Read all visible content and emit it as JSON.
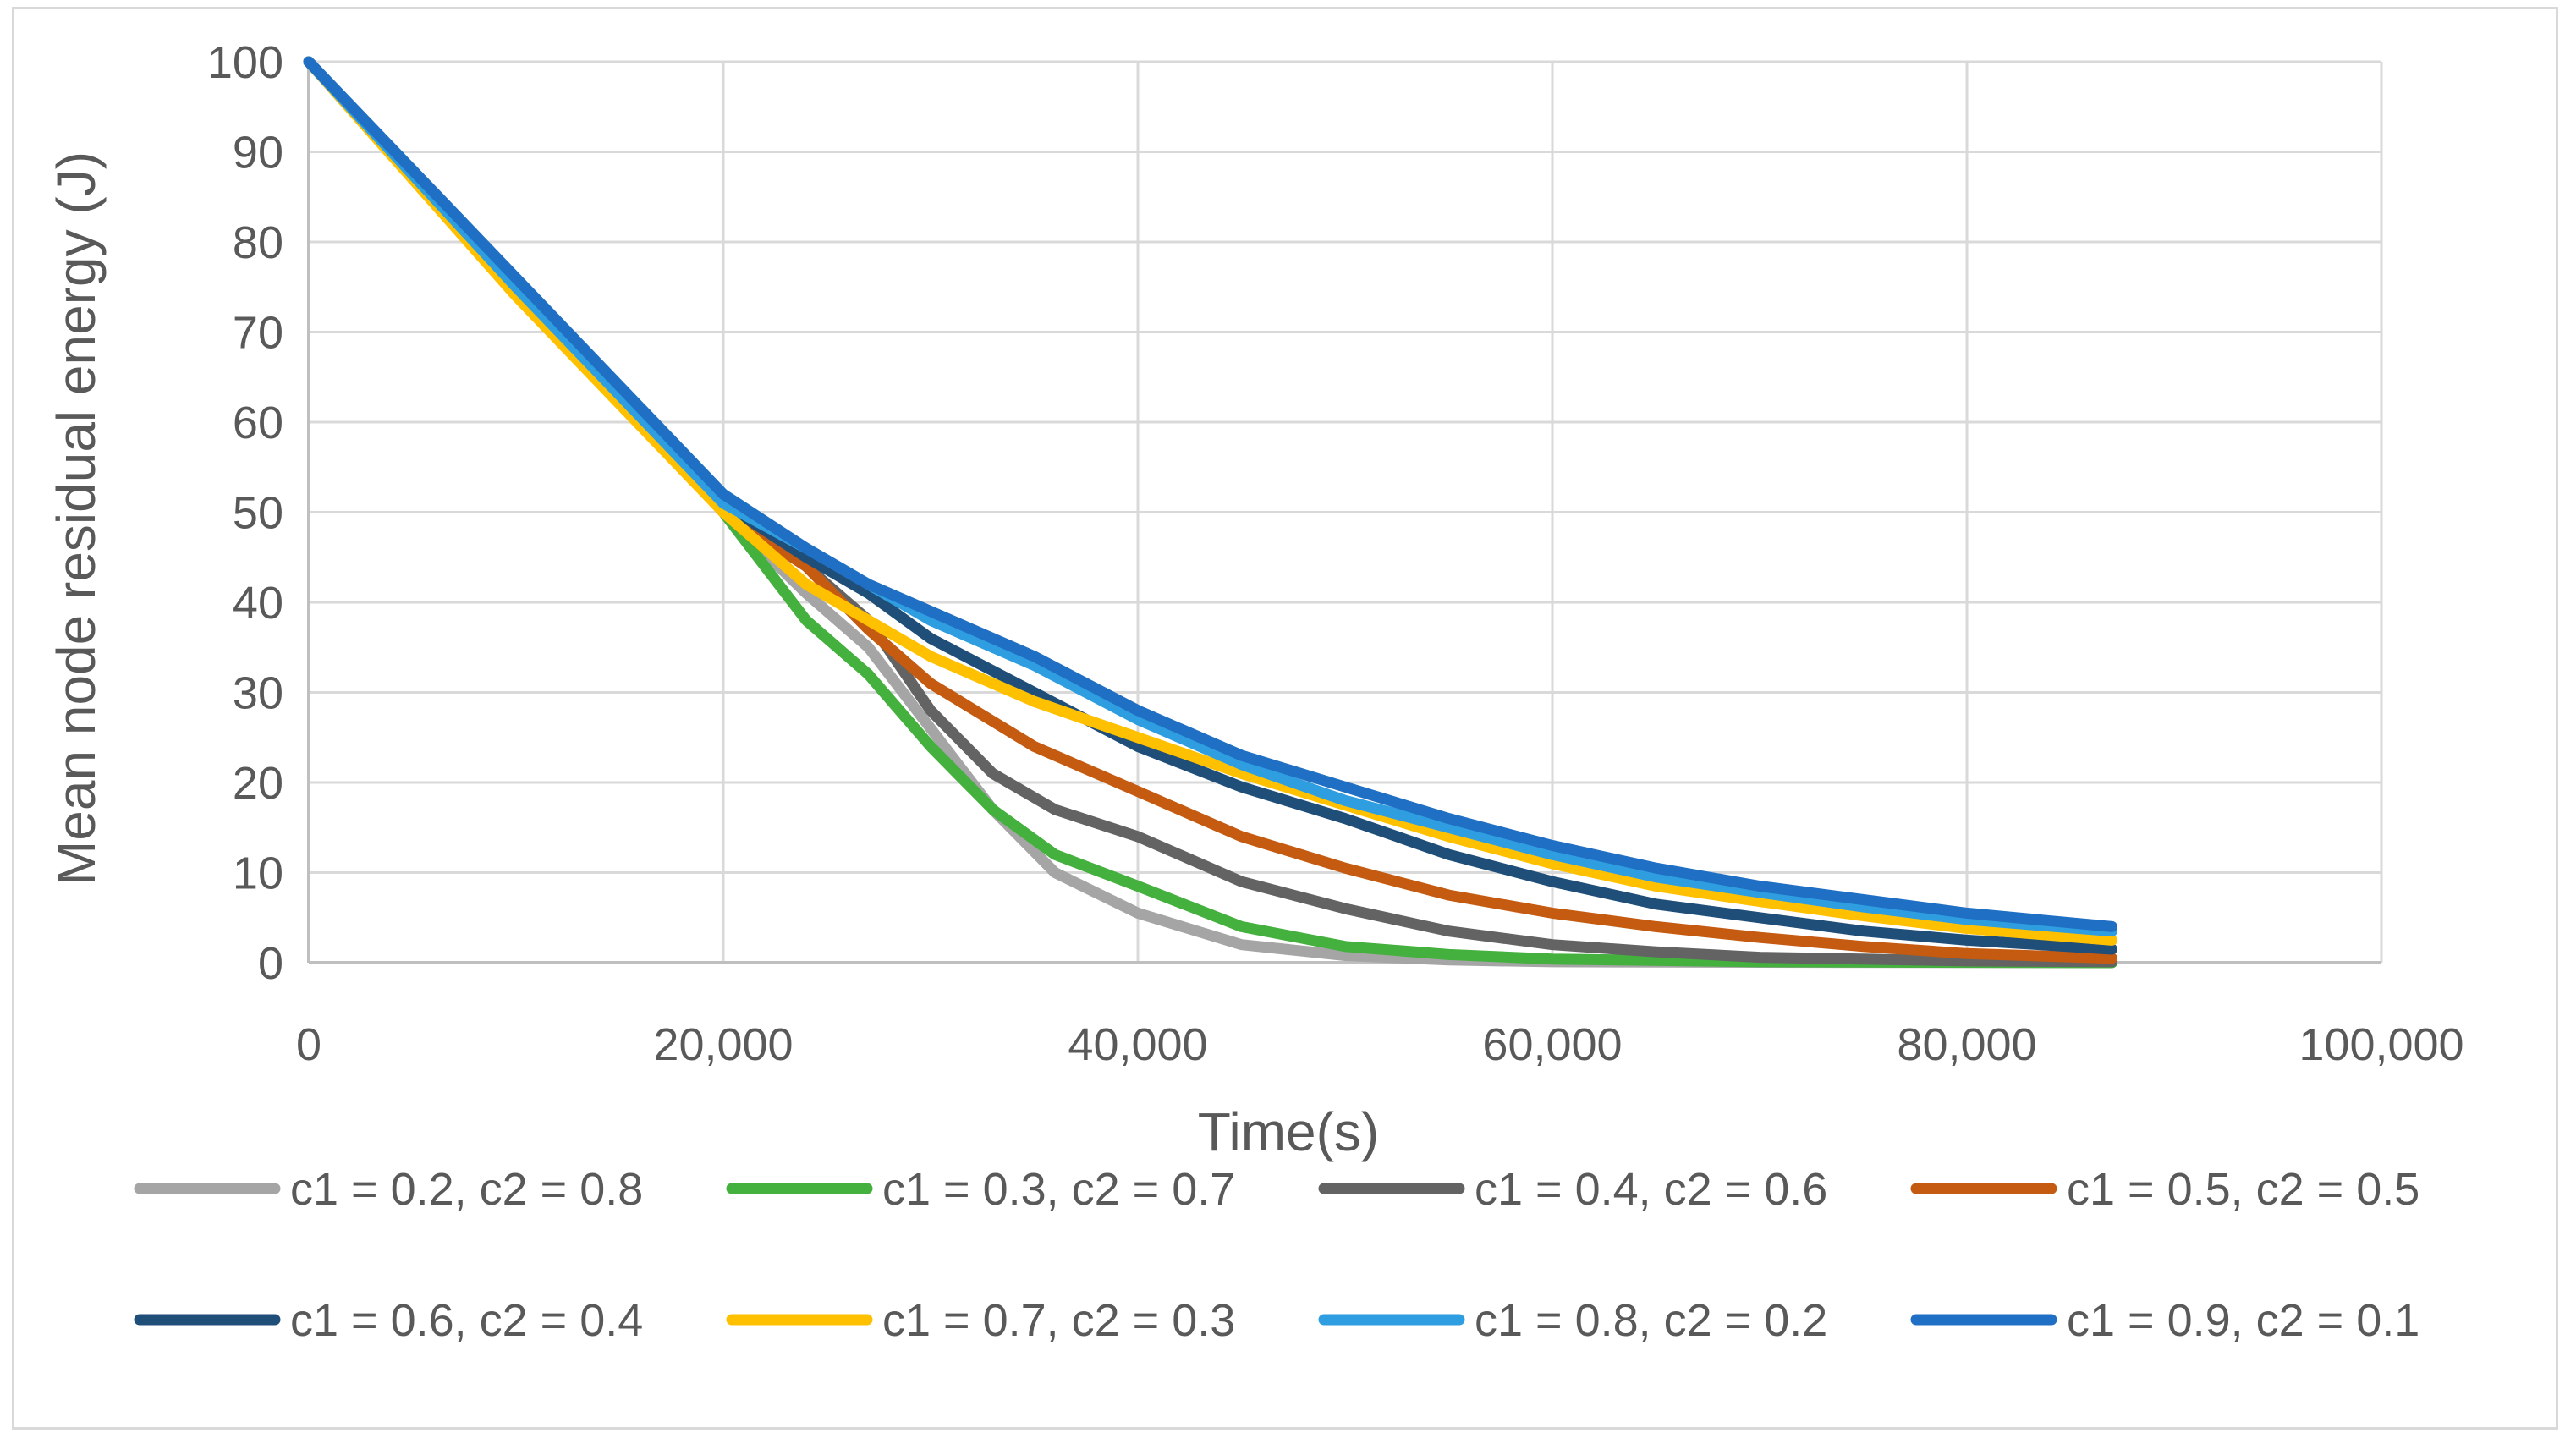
{
  "chart_data": {
    "type": "line",
    "title": "",
    "xlabel": "Time(s)",
    "ylabel": "Mean node residual energy (J)",
    "xlim": [
      0,
      100000
    ],
    "ylim": [
      0,
      100
    ],
    "xticks": [
      0,
      20000,
      40000,
      60000,
      80000,
      100000
    ],
    "xtick_labels": [
      "0",
      "20,000",
      "40,000",
      "60,000",
      "80,000",
      "100,000"
    ],
    "yticks": [
      0,
      10,
      20,
      30,
      40,
      50,
      60,
      70,
      80,
      90,
      100
    ],
    "ytick_labels": [
      "0",
      "10",
      "20",
      "30",
      "40",
      "50",
      "60",
      "70",
      "80",
      "90",
      "100"
    ],
    "grid": true,
    "legend_position": "bottom",
    "series": [
      {
        "name": "c1 = 0.2, c2 = 0.8",
        "color": "#a5a5a5",
        "x": [
          0,
          10000,
          20000,
          24000,
          27000,
          30000,
          33000,
          36000,
          40000,
          45000,
          50000,
          55000,
          60000,
          70000,
          87000
        ],
        "y": [
          100,
          75,
          50,
          41,
          35,
          26,
          17,
          10,
          5.5,
          2,
          0.8,
          0.3,
          0.1,
          0.05,
          0
        ]
      },
      {
        "name": "c1 = 0.3, c2 = 0.7",
        "color": "#44b03e",
        "x": [
          0,
          10000,
          20000,
          24000,
          27000,
          30000,
          33000,
          36000,
          40000,
          45000,
          50000,
          55000,
          60000,
          70000,
          87000
        ],
        "y": [
          100,
          75,
          50,
          38,
          32,
          24,
          17,
          12,
          8.5,
          4,
          1.8,
          0.9,
          0.4,
          0.1,
          0
        ]
      },
      {
        "name": "c1 = 0.4, c2 = 0.6",
        "color": "#636363",
        "x": [
          0,
          10000,
          20000,
          24000,
          27000,
          30000,
          33000,
          36000,
          40000,
          45000,
          50000,
          55000,
          60000,
          65000,
          70000,
          80000,
          87000
        ],
        "y": [
          100,
          75,
          50,
          44,
          38,
          28,
          21,
          17,
          14,
          9,
          6,
          3.5,
          2,
          1.2,
          0.6,
          0.2,
          0.1
        ]
      },
      {
        "name": "c1 = 0.5, c2 = 0.5",
        "color": "#c55a11",
        "x": [
          0,
          10000,
          20000,
          24000,
          27000,
          30000,
          35000,
          40000,
          45000,
          50000,
          55000,
          60000,
          65000,
          70000,
          75000,
          80000,
          87000
        ],
        "y": [
          100,
          75,
          50,
          44,
          37,
          31,
          24,
          19,
          14,
          10.5,
          7.5,
          5.5,
          4,
          2.8,
          1.8,
          1,
          0.5
        ]
      },
      {
        "name": "c1 = 0.6, c2 = 0.4",
        "color": "#1f4e79",
        "x": [
          0,
          10000,
          20000,
          24000,
          27000,
          30000,
          35000,
          40000,
          45000,
          50000,
          55000,
          60000,
          65000,
          70000,
          75000,
          80000,
          87000
        ],
        "y": [
          100,
          75,
          51,
          45,
          41,
          36,
          30,
          24,
          19.5,
          16,
          12,
          9,
          6.5,
          5,
          3.5,
          2.5,
          1.5
        ]
      },
      {
        "name": "c1 = 0.7, c2 = 0.3",
        "color": "#ffc000",
        "x": [
          0,
          10000,
          20000,
          24000,
          27000,
          30000,
          35000,
          40000,
          45000,
          50000,
          55000,
          60000,
          65000,
          70000,
          75000,
          80000,
          87000
        ],
        "y": [
          100,
          74,
          50,
          42,
          38,
          34,
          29,
          25,
          21,
          17.5,
          14,
          11,
          8.5,
          6.8,
          5.2,
          3.8,
          2.5
        ]
      },
      {
        "name": "c1 = 0.8, c2 = 0.2",
        "color": "#2e9ee0",
        "x": [
          0,
          10000,
          20000,
          24000,
          27000,
          30000,
          35000,
          40000,
          45000,
          50000,
          55000,
          60000,
          65000,
          70000,
          75000,
          80000,
          87000
        ],
        "y": [
          100,
          75,
          51,
          46,
          42,
          38,
          33,
          27,
          22,
          18,
          15,
          12,
          9.5,
          7.8,
          6.2,
          4.8,
          3.5
        ]
      },
      {
        "name": "c1 = 0.9, c2 = 0.1",
        "color": "#1f6fc4",
        "x": [
          0,
          10000,
          20000,
          24000,
          27000,
          30000,
          35000,
          40000,
          45000,
          50000,
          55000,
          60000,
          65000,
          70000,
          75000,
          80000,
          87000
        ],
        "y": [
          100,
          76,
          52,
          46,
          42,
          39,
          34,
          28,
          23,
          19.5,
          16,
          13,
          10.5,
          8.5,
          7,
          5.5,
          4
        ]
      }
    ]
  }
}
